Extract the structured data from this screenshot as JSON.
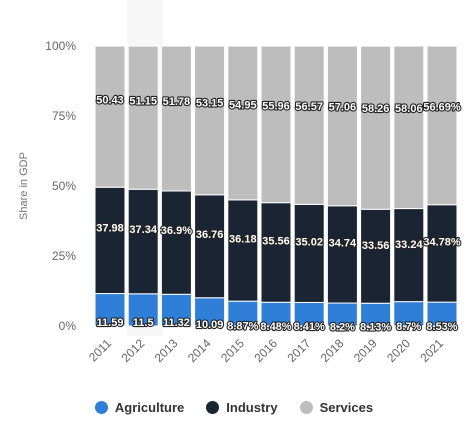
{
  "chart_data": {
    "type": "bar",
    "stacked": true,
    "categories": [
      "2011",
      "2012",
      "2013",
      "2014",
      "2015",
      "2016",
      "2017",
      "2018",
      "2019",
      "2020",
      "2021"
    ],
    "series": [
      {
        "name": "Agriculture",
        "color": "#2f7ed8",
        "values": [
          11.59,
          11.5,
          11.32,
          10.09,
          8.87,
          8.48,
          8.41,
          8.2,
          8.13,
          8.7,
          8.53
        ],
        "labels": [
          "11.59",
          "11.5",
          "11.32",
          "10.09",
          "8.87%",
          "8.48%",
          "8.41%",
          "8.2%",
          "8.13%",
          "8.7%",
          "8.53%"
        ]
      },
      {
        "name": "Industry",
        "color": "#1a2433",
        "values": [
          37.98,
          37.34,
          36.9,
          36.76,
          36.18,
          35.56,
          35.02,
          34.74,
          33.56,
          33.24,
          34.78
        ],
        "labels": [
          "37.98",
          "37.34",
          "36.9%",
          "36.76",
          "36.18",
          "35.56",
          "35.02",
          "34.74",
          "33.56",
          "33.24",
          "34.78%"
        ]
      },
      {
        "name": "Services",
        "color": "#bdbdbd",
        "values": [
          50.43,
          51.15,
          51.78,
          53.15,
          54.95,
          55.96,
          56.57,
          57.06,
          58.26,
          58.06,
          56.69
        ],
        "labels": [
          "50.43",
          "51.15",
          "51.78",
          "53.15",
          "54.95",
          "55.96",
          "56.57",
          "57.06",
          "58.26",
          "58.06",
          "56.69%"
        ]
      }
    ],
    "ylabel": "Share in GDP",
    "ylim": [
      0,
      100
    ],
    "yticks": [
      "0%",
      "25%",
      "50%",
      "75%",
      "100%"
    ],
    "legend": "bottom",
    "grid": false
  }
}
